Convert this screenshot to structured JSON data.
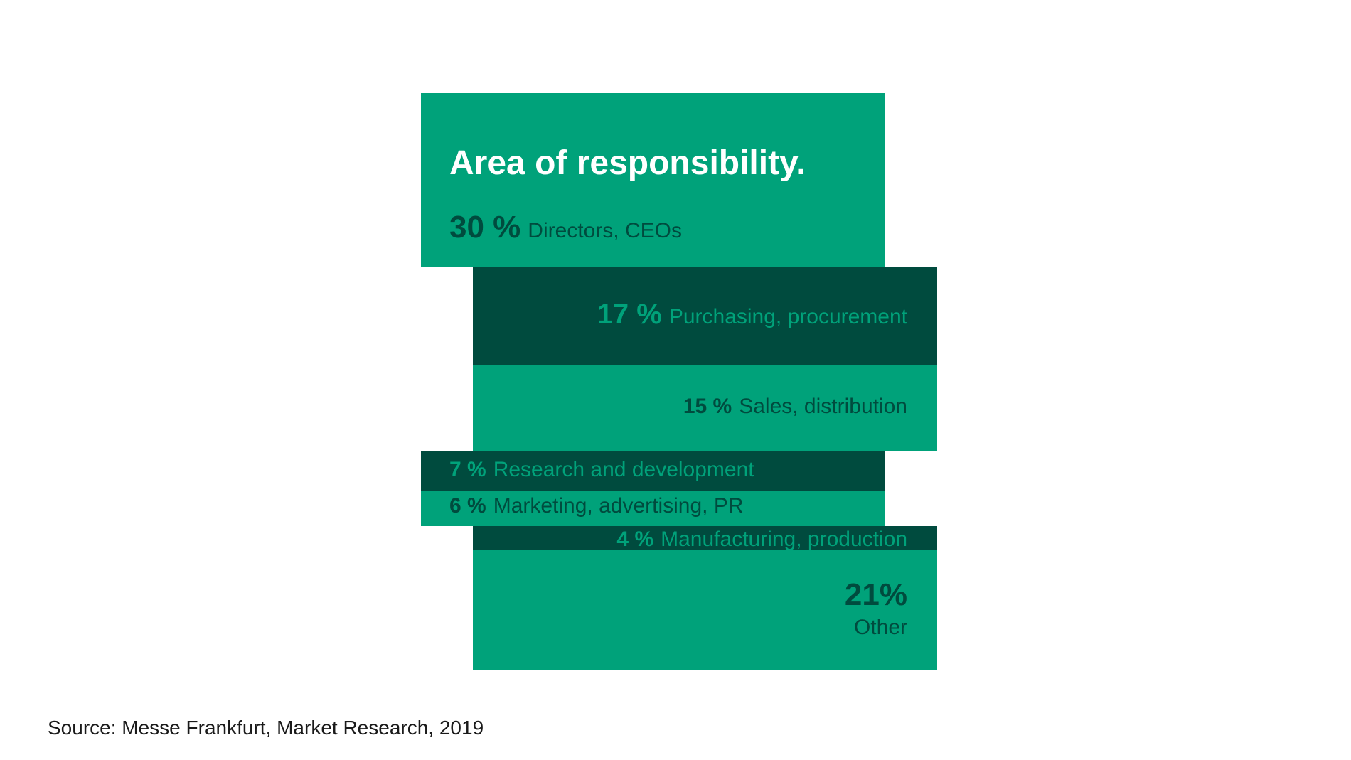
{
  "chart_data": {
    "type": "bar",
    "title": "Area of responsibility.",
    "unit": "%",
    "categories": [
      "Directors, CEOs",
      "Purchasing, procurement",
      "Sales, distribution",
      "Research and development",
      "Marketing, advertising, PR",
      "Manufacturing, production",
      "Other"
    ],
    "values": [
      30,
      17,
      15,
      7,
      6,
      4,
      21
    ],
    "value_labels": [
      "30 %",
      "17 %",
      "15 %",
      "7 %",
      "6 %",
      "4 %",
      "21%"
    ],
    "colors": {
      "light": "#00a27a",
      "dark": "#004b3e",
      "title": "#ffffff"
    }
  },
  "source": "Source: Messe Frankfurt, Market Research, 2019"
}
